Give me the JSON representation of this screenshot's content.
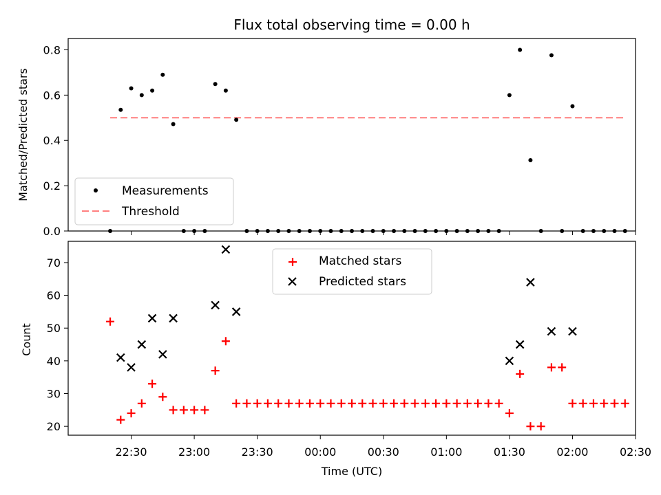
{
  "title": "Flux total observing time = 0.00 h",
  "colors": {
    "measurement": "#000000",
    "threshold": "#ff7f7f",
    "matched": "#ff0000",
    "predicted": "#000000"
  },
  "chart_data": [
    {
      "type": "scatter",
      "ylabel": "Matched/Predicted stars",
      "ylim": [
        0,
        0.85
      ],
      "yticks": [
        0.0,
        0.2,
        0.4,
        0.6,
        0.8
      ],
      "ytick_labels": [
        "0.0",
        "0.2",
        "0.4",
        "0.6",
        "0.8"
      ],
      "legend_position": "lower-left",
      "threshold": {
        "name": "Threshold",
        "value": 0.5,
        "x_range": [
          "22:20",
          "02:25"
        ]
      },
      "series": [
        {
          "name": "Measurements",
          "points": [
            [
              "22:20",
              0.0
            ],
            [
              "22:25",
              0.535
            ],
            [
              "22:30",
              0.63
            ],
            [
              "22:35",
              0.6
            ],
            [
              "22:40",
              0.62
            ],
            [
              "22:45",
              0.69
            ],
            [
              "22:50",
              0.472
            ],
            [
              "22:55",
              0.0
            ],
            [
              "23:00",
              0.0
            ],
            [
              "23:05",
              0.0
            ],
            [
              "23:10",
              0.649
            ],
            [
              "23:15",
              0.62
            ],
            [
              "23:20",
              0.491
            ],
            [
              "23:25",
              0.0
            ],
            [
              "23:30",
              0.0
            ],
            [
              "23:35",
              0.0
            ],
            [
              "23:40",
              0.0
            ],
            [
              "23:45",
              0.0
            ],
            [
              "23:50",
              0.0
            ],
            [
              "23:55",
              0.0
            ],
            [
              "00:00",
              0.0
            ],
            [
              "00:05",
              0.0
            ],
            [
              "00:10",
              0.0
            ],
            [
              "00:15",
              0.0
            ],
            [
              "00:20",
              0.0
            ],
            [
              "00:25",
              0.0
            ],
            [
              "00:30",
              0.0
            ],
            [
              "00:35",
              0.0
            ],
            [
              "00:40",
              0.0
            ],
            [
              "00:45",
              0.0
            ],
            [
              "00:50",
              0.0
            ],
            [
              "00:55",
              0.0
            ],
            [
              "01:00",
              0.0
            ],
            [
              "01:05",
              0.0
            ],
            [
              "01:10",
              0.0
            ],
            [
              "01:15",
              0.0
            ],
            [
              "01:20",
              0.0
            ],
            [
              "01:25",
              0.0
            ],
            [
              "01:30",
              0.6
            ],
            [
              "01:35",
              0.8
            ],
            [
              "01:40",
              0.3125
            ],
            [
              "01:45",
              0.0
            ],
            [
              "01:50",
              0.776
            ],
            [
              "01:55",
              0.0
            ],
            [
              "02:00",
              0.551
            ],
            [
              "02:05",
              0.0
            ],
            [
              "02:10",
              0.0
            ],
            [
              "02:15",
              0.0
            ],
            [
              "02:20",
              0.0
            ],
            [
              "02:25",
              0.0
            ]
          ]
        }
      ]
    },
    {
      "type": "scatter",
      "xlabel": "Time (UTC)",
      "ylabel": "Count",
      "xlim": [
        "22:00",
        "02:30"
      ],
      "ylim": [
        17.3,
        76.5
      ],
      "xtick_labels": [
        "22:30",
        "23:00",
        "23:30",
        "00:00",
        "00:30",
        "01:00",
        "01:30",
        "02:00",
        "02:30"
      ],
      "yticks": [
        20,
        30,
        40,
        50,
        60,
        70
      ],
      "ytick_labels": [
        "20",
        "30",
        "40",
        "50",
        "60",
        "70"
      ],
      "legend_position": "upper-center",
      "series": [
        {
          "name": "Matched stars",
          "points": [
            [
              "22:20",
              52
            ],
            [
              "22:25",
              22
            ],
            [
              "22:30",
              24
            ],
            [
              "22:35",
              27
            ],
            [
              "22:40",
              33
            ],
            [
              "22:45",
              29
            ],
            [
              "22:50",
              25
            ],
            [
              "22:55",
              25
            ],
            [
              "23:00",
              25
            ],
            [
              "23:05",
              25
            ],
            [
              "23:10",
              37
            ],
            [
              "23:15",
              46
            ],
            [
              "23:20",
              27
            ],
            [
              "23:25",
              27
            ],
            [
              "23:30",
              27
            ],
            [
              "23:35",
              27
            ],
            [
              "23:40",
              27
            ],
            [
              "23:45",
              27
            ],
            [
              "23:50",
              27
            ],
            [
              "23:55",
              27
            ],
            [
              "00:00",
              27
            ],
            [
              "00:05",
              27
            ],
            [
              "00:10",
              27
            ],
            [
              "00:15",
              27
            ],
            [
              "00:20",
              27
            ],
            [
              "00:25",
              27
            ],
            [
              "00:30",
              27
            ],
            [
              "00:35",
              27
            ],
            [
              "00:40",
              27
            ],
            [
              "00:45",
              27
            ],
            [
              "00:50",
              27
            ],
            [
              "00:55",
              27
            ],
            [
              "01:00",
              27
            ],
            [
              "01:05",
              27
            ],
            [
              "01:10",
              27
            ],
            [
              "01:15",
              27
            ],
            [
              "01:20",
              27
            ],
            [
              "01:25",
              27
            ],
            [
              "01:30",
              24
            ],
            [
              "01:35",
              36
            ],
            [
              "01:40",
              20
            ],
            [
              "01:45",
              20
            ],
            [
              "01:50",
              38
            ],
            [
              "01:55",
              38
            ],
            [
              "02:00",
              27
            ],
            [
              "02:05",
              27
            ],
            [
              "02:10",
              27
            ],
            [
              "02:15",
              27
            ],
            [
              "02:20",
              27
            ],
            [
              "02:25",
              27
            ]
          ]
        },
        {
          "name": "Predicted stars",
          "points": [
            [
              "22:25",
              41
            ],
            [
              "22:30",
              38
            ],
            [
              "22:35",
              45
            ],
            [
              "22:40",
              53
            ],
            [
              "22:45",
              42
            ],
            [
              "22:50",
              53
            ],
            [
              "23:10",
              57
            ],
            [
              "23:15",
              74
            ],
            [
              "23:20",
              55
            ],
            [
              "01:30",
              40
            ],
            [
              "01:35",
              45
            ],
            [
              "01:40",
              64
            ],
            [
              "01:50",
              49
            ],
            [
              "02:00",
              49
            ]
          ]
        }
      ]
    }
  ]
}
